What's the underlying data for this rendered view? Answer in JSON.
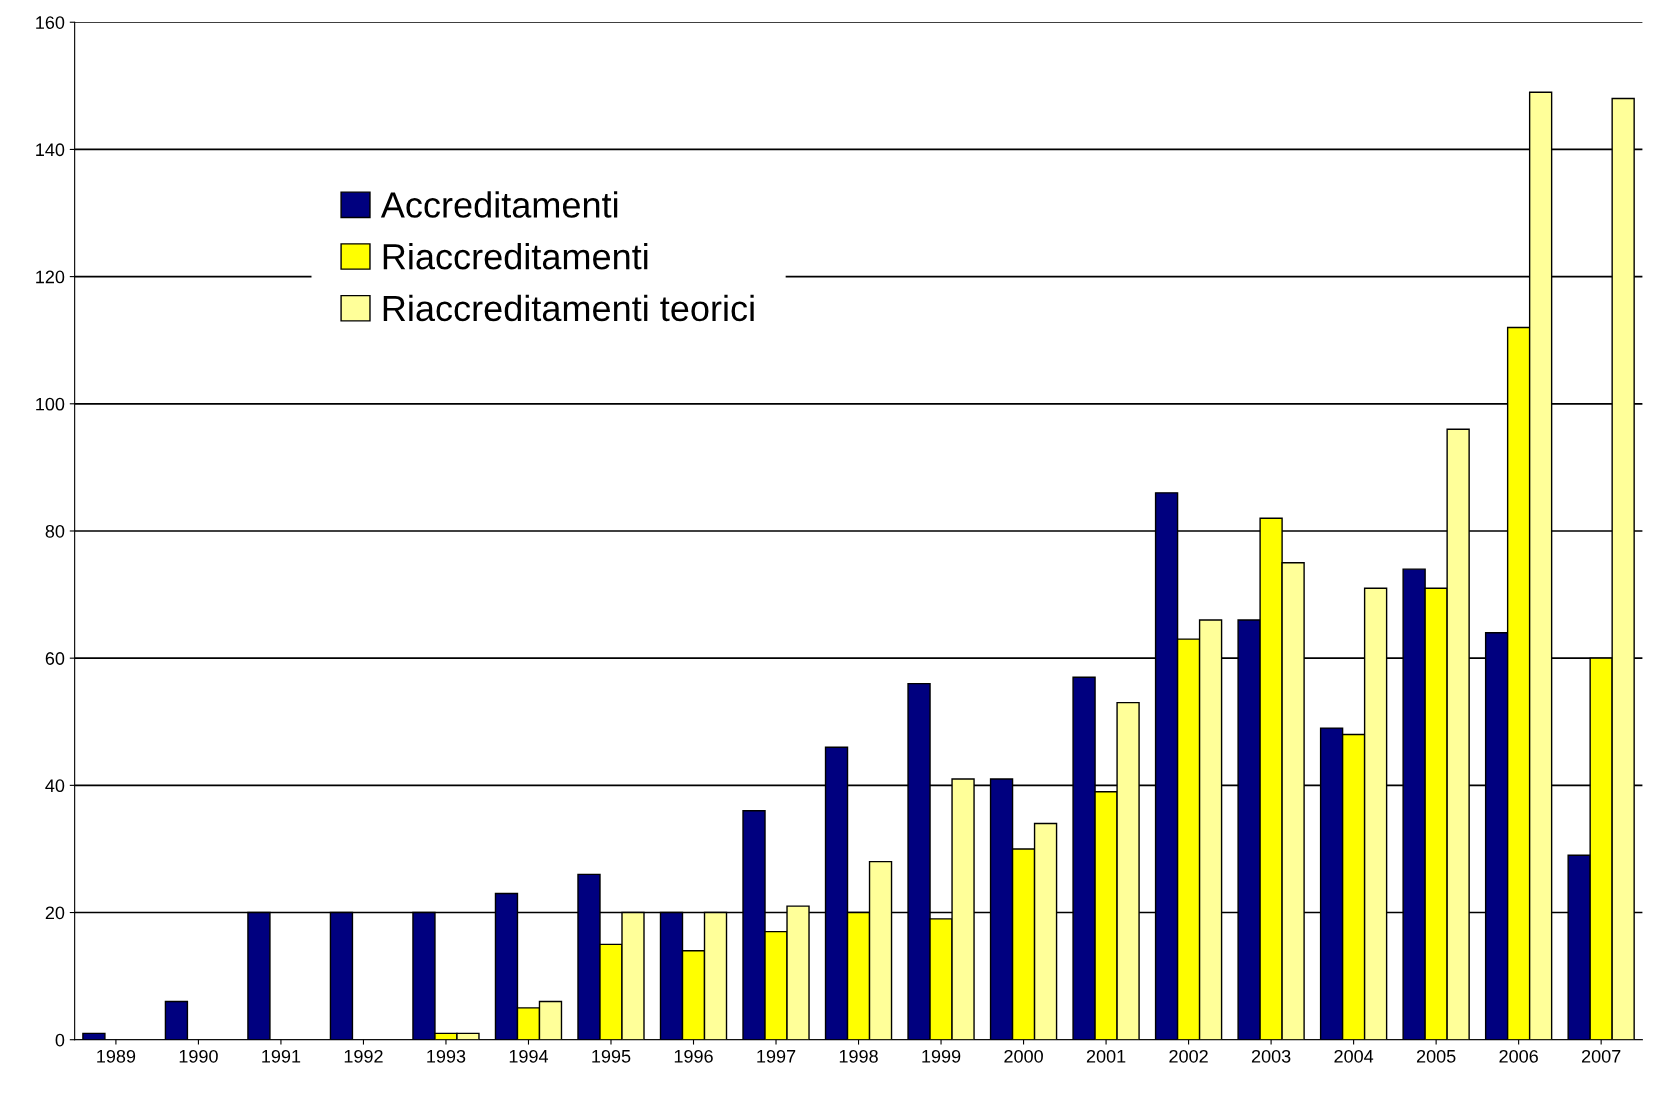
{
  "chart_data": {
    "type": "bar",
    "categories": [
      "1989",
      "1990",
      "1991",
      "1992",
      "1993",
      "1994",
      "1995",
      "1996",
      "1997",
      "1998",
      "1999",
      "2000",
      "2001",
      "2002",
      "2003",
      "2004",
      "2005",
      "2006",
      "2007"
    ],
    "series": [
      {
        "name": "Accreditamenti",
        "color": "#00007f",
        "values": [
          1,
          6,
          20,
          20,
          20,
          23,
          26,
          20,
          36,
          46,
          56,
          41,
          57,
          86,
          66,
          49,
          74,
          64,
          29
        ]
      },
      {
        "name": "Riaccreditamenti",
        "color": "#ffff00",
        "values": [
          null,
          null,
          null,
          null,
          1,
          5,
          15,
          14,
          17,
          20,
          19,
          30,
          39,
          63,
          82,
          48,
          71,
          112,
          60
        ]
      },
      {
        "name": "Riaccreditamenti teorici",
        "color": "#ffff99",
        "values": [
          null,
          null,
          null,
          null,
          1,
          6,
          20,
          20,
          21,
          28,
          41,
          34,
          53,
          66,
          75,
          71,
          96,
          149,
          148
        ]
      }
    ],
    "ylim": [
      0,
      160
    ],
    "yticks": [
      0,
      20,
      40,
      60,
      80,
      100,
      120,
      140,
      160
    ],
    "grid": "y",
    "legend": "top left"
  }
}
